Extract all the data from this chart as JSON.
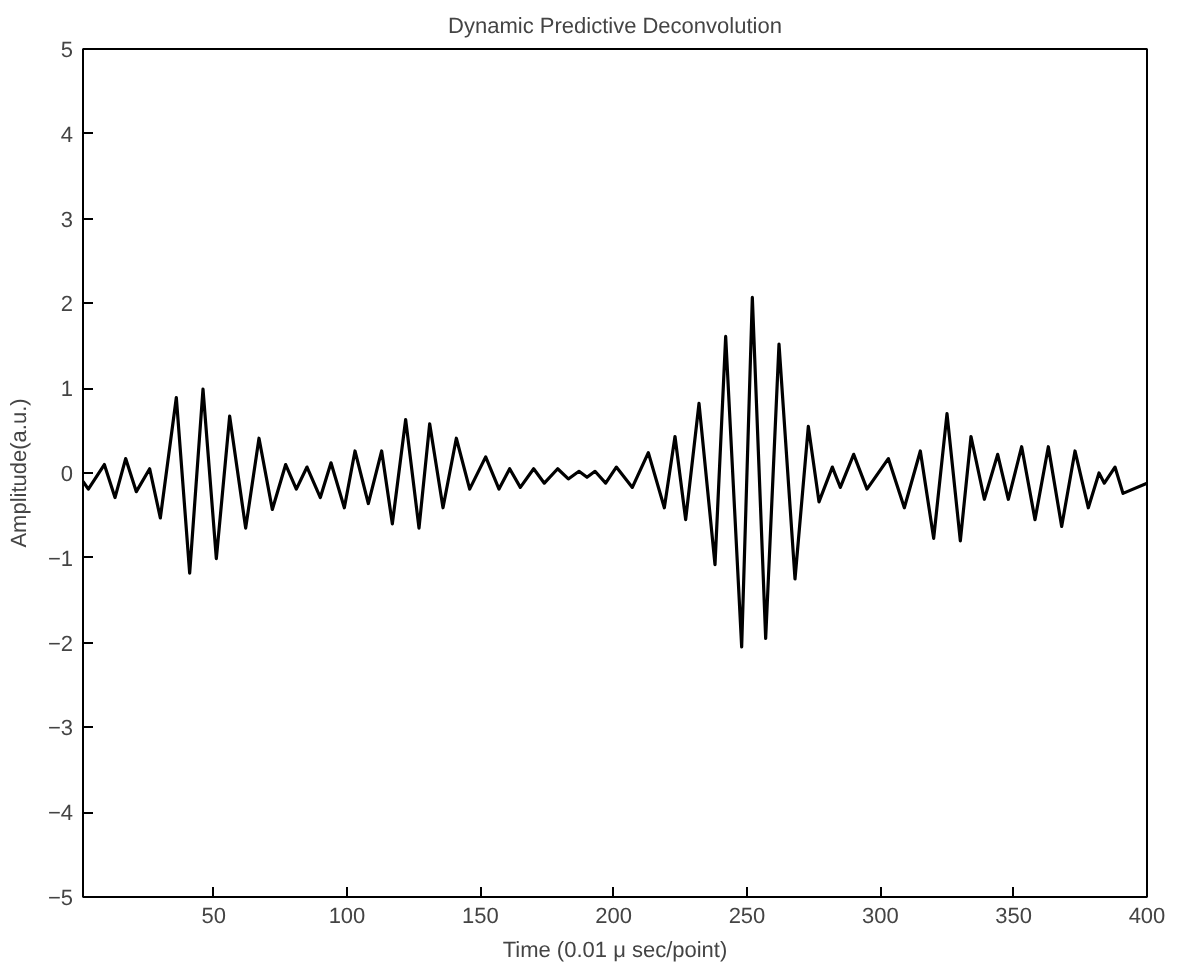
{
  "chart_data": {
    "type": "line",
    "title": "Dynamic Predictive Deconvolution",
    "xlabel": "Time (0.01 μ sec/point)",
    "ylabel": "Amplitude(a.u.)",
    "x": [
      1,
      3,
      9,
      13,
      17,
      21,
      26,
      30,
      36,
      41,
      46,
      51,
      56,
      62,
      67,
      72,
      77,
      81,
      85,
      90,
      94,
      99,
      103,
      108,
      113,
      117,
      122,
      127,
      131,
      136,
      141,
      146,
      152,
      157,
      161,
      165,
      170,
      174,
      179,
      183,
      187,
      190,
      193,
      197,
      201,
      207,
      213,
      219,
      223,
      227,
      232,
      238,
      242,
      248,
      252,
      257,
      262,
      268,
      273,
      277,
      282,
      285,
      290,
      295,
      303,
      309,
      315,
      320,
      325,
      330,
      334,
      339,
      344,
      348,
      353,
      358,
      363,
      368,
      373,
      378,
      382,
      384,
      388,
      391,
      400
    ],
    "series": [
      {
        "color": "#000000",
        "values": [
          -0.1,
          -0.19,
          0.1,
          -0.29,
          0.17,
          -0.22,
          0.05,
          -0.53,
          0.89,
          -1.18,
          0.99,
          -1.01,
          0.67,
          -0.65,
          0.41,
          -0.43,
          0.1,
          -0.19,
          0.07,
          -0.29,
          0.12,
          -0.41,
          0.26,
          -0.36,
          0.26,
          -0.6,
          0.63,
          -0.65,
          0.58,
          -0.41,
          0.41,
          -0.19,
          0.19,
          -0.19,
          0.05,
          -0.17,
          0.05,
          -0.12,
          0.05,
          -0.07,
          0.02,
          -0.05,
          0.02,
          -0.12,
          0.07,
          -0.17,
          0.24,
          -0.41,
          0.43,
          -0.55,
          0.82,
          -1.08,
          1.61,
          -2.05,
          2.07,
          -1.95,
          1.52,
          -1.25,
          0.55,
          -0.34,
          0.07,
          -0.17,
          0.22,
          -0.19,
          0.17,
          -0.41,
          0.26,
          -0.77,
          0.7,
          -0.8,
          0.43,
          -0.31,
          0.22,
          -0.31,
          0.31,
          -0.55,
          0.31,
          -0.63,
          0.26,
          -0.41,
          0.0,
          -0.12,
          0.07,
          -0.24,
          -0.12
        ]
      }
    ],
    "xlim": [
      1,
      400
    ],
    "ylim": [
      -5,
      5
    ],
    "xticks": [
      50,
      100,
      150,
      200,
      250,
      300,
      350,
      400
    ],
    "yticks": [
      -5,
      -4,
      -3,
      -2,
      -1,
      0,
      1,
      2,
      3,
      4,
      5
    ],
    "grid": false,
    "marker": "none",
    "line_style": "solid"
  }
}
